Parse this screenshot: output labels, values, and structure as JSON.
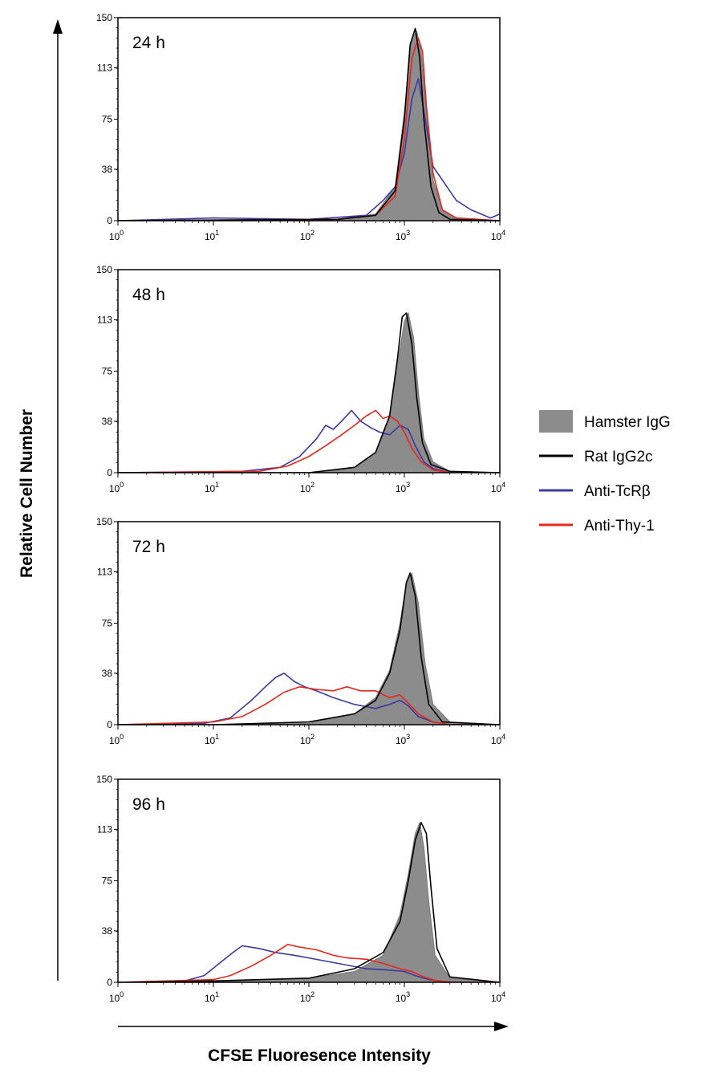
{
  "chart_data": {
    "type": "line",
    "xlabel": "CFSE Fluoresence Intensity",
    "ylabel": "Relative Cell Number",
    "x_scale": "log",
    "xlim": [
      1,
      10000
    ],
    "ylim": [
      0,
      150
    ],
    "x_ticks": [
      "10^0",
      "10^1",
      "10^2",
      "10^3",
      "10^4"
    ],
    "y_ticks": [
      "0",
      "38",
      "75",
      "113",
      "150"
    ],
    "legend": {
      "placement": "right",
      "entries": [
        {
          "name": "Hamster IgG",
          "color": "#8c8c8c",
          "style": "filled"
        },
        {
          "name": "Rat IgG2c",
          "color": "#000000",
          "style": "line"
        },
        {
          "name": "Anti-TcRβ",
          "color": "#3a3aa0",
          "style": "line"
        },
        {
          "name": "Anti-Thy-1",
          "color": "#e8261c",
          "style": "line"
        }
      ]
    },
    "panels": [
      {
        "label": "24 h",
        "series": [
          {
            "name": "Hamster IgG",
            "x": [
              1,
              200,
              500,
              800,
              1000,
              1200,
              1350,
              1500,
              1700,
              2000,
              2500,
              3500,
              10000
            ],
            "y": [
              0,
              1,
              5,
              25,
              80,
              135,
              140,
              125,
              80,
              30,
              8,
              2,
              0
            ]
          },
          {
            "name": "Rat IgG2c",
            "x": [
              1,
              200,
              500,
              800,
              1000,
              1150,
              1300,
              1450,
              1600,
              1900,
              2300,
              3000,
              10000
            ],
            "y": [
              0,
              1,
              4,
              22,
              75,
              130,
              142,
              120,
              75,
              25,
              6,
              1,
              0
            ]
          },
          {
            "name": "Anti-TcRβ",
            "x": [
              1,
              10,
              100,
              400,
              600,
              800,
              1000,
              1200,
              1400,
              1700,
              2000,
              2500,
              3500,
              5000,
              8000,
              10000
            ],
            "y": [
              0,
              2,
              1,
              4,
              15,
              25,
              50,
              90,
              105,
              70,
              40,
              30,
              15,
              8,
              2,
              5
            ]
          },
          {
            "name": "Anti-Thy-1",
            "x": [
              1,
              200,
              500,
              800,
              1000,
              1200,
              1400,
              1550,
              1700,
              2000,
              2500,
              3500,
              10000
            ],
            "y": [
              0,
              1,
              4,
              18,
              60,
              120,
              135,
              125,
              85,
              35,
              8,
              2,
              0
            ]
          }
        ]
      },
      {
        "label": "48 h",
        "series": [
          {
            "name": "Hamster IgG",
            "x": [
              1,
              100,
              300,
              500,
              700,
              850,
              1000,
              1100,
              1250,
              1400,
              1600,
              2000,
              3000,
              10000
            ],
            "y": [
              0,
              0,
              4,
              15,
              40,
              80,
              112,
              118,
              100,
              60,
              25,
              8,
              1,
              0
            ]
          },
          {
            "name": "Rat IgG2c",
            "x": [
              1,
              100,
              300,
              500,
              700,
              850,
              950,
              1050,
              1200,
              1350,
              1550,
              1900,
              3000,
              10000
            ],
            "y": [
              0,
              0,
              4,
              15,
              42,
              85,
              115,
              118,
              95,
              55,
              22,
              6,
              1,
              0
            ]
          },
          {
            "name": "Anti-TcRβ",
            "x": [
              1,
              20,
              50,
              80,
              120,
              150,
              180,
              220,
              280,
              350,
              450,
              550,
              700,
              900,
              1100,
              1300,
              1600,
              2000,
              3000,
              10000
            ],
            "y": [
              0,
              1,
              4,
              12,
              25,
              35,
              32,
              38,
              46,
              38,
              33,
              30,
              28,
              35,
              32,
              20,
              8,
              3,
              0,
              0
            ]
          },
          {
            "name": "Anti-Thy-1",
            "x": [
              1,
              30,
              60,
              100,
              150,
              220,
              300,
              400,
              500,
              600,
              700,
              850,
              1000,
              1200,
              1500,
              2000,
              3000,
              10000
            ],
            "y": [
              0,
              1,
              5,
              12,
              20,
              28,
              35,
              42,
              46,
              40,
              42,
              38,
              30,
              18,
              8,
              2,
              0,
              0
            ]
          }
        ]
      },
      {
        "label": "72 h",
        "series": [
          {
            "name": "Hamster IgG",
            "x": [
              1,
              10,
              100,
              300,
              500,
              700,
              900,
              1050,
              1200,
              1400,
              1650,
              2000,
              3000,
              10000
            ],
            "y": [
              0,
              0,
              1,
              8,
              20,
              40,
              75,
              105,
              112,
              90,
              45,
              15,
              2,
              0
            ]
          },
          {
            "name": "Rat IgG2c",
            "x": [
              1,
              10,
              100,
              300,
              500,
              700,
              900,
              1050,
              1150,
              1300,
              1500,
              1800,
              2500,
              10000
            ],
            "y": [
              0,
              0,
              2,
              8,
              18,
              38,
              70,
              105,
              112,
              95,
              50,
              15,
              2,
              0
            ]
          },
          {
            "name": "Anti-TcRβ",
            "x": [
              1,
              8,
              15,
              25,
              35,
              45,
              55,
              70,
              90,
              120,
              180,
              300,
              500,
              700,
              900,
              1100,
              1400,
              2000,
              3000,
              10000
            ],
            "y": [
              0,
              1,
              5,
              18,
              28,
              35,
              38,
              32,
              28,
              25,
              20,
              15,
              12,
              15,
              18,
              14,
              6,
              2,
              0,
              0
            ]
          },
          {
            "name": "Anti-Thy-1",
            "x": [
              1,
              10,
              20,
              35,
              55,
              80,
              120,
              180,
              250,
              350,
              500,
              700,
              900,
              1100,
              1400,
              2000,
              3000,
              10000
            ],
            "y": [
              0,
              2,
              6,
              15,
              24,
              28,
              26,
              25,
              28,
              25,
              25,
              20,
              22,
              16,
              8,
              2,
              0,
              0
            ]
          }
        ]
      },
      {
        "label": "96 h",
        "series": [
          {
            "name": "Hamster IgG",
            "x": [
              1,
              10,
              100,
              300,
              600,
              900,
              1100,
              1300,
              1450,
              1600,
              1800,
              2100,
              3000,
              10000
            ],
            "y": [
              0,
              1,
              3,
              8,
              20,
              50,
              80,
              110,
              118,
              100,
              60,
              20,
              3,
              0
            ]
          },
          {
            "name": "Rat IgG2c",
            "x": [
              1,
              10,
              100,
              300,
              600,
              900,
              1100,
              1300,
              1500,
              1700,
              1900,
              2200,
              3000,
              10000
            ],
            "y": [
              0,
              1,
              3,
              10,
              22,
              45,
              75,
              105,
              118,
              110,
              70,
              25,
              4,
              0
            ]
          },
          {
            "name": "Anti-TcRβ",
            "x": [
              1,
              5,
              8,
              12,
              16,
              20,
              30,
              45,
              70,
              100,
              200,
              400,
              700,
              1000,
              1300,
              1800,
              3000,
              10000
            ],
            "y": [
              0,
              1,
              5,
              15,
              22,
              27,
              25,
              22,
              20,
              18,
              14,
              10,
              9,
              8,
              5,
              2,
              0,
              0
            ]
          },
          {
            "name": "Anti-Thy-1",
            "x": [
              1,
              10,
              15,
              25,
              40,
              60,
              80,
              120,
              180,
              250,
              400,
              600,
              900,
              1200,
              1600,
              2200,
              3500,
              10000
            ],
            "y": [
              0,
              2,
              5,
              12,
              20,
              28,
              26,
              24,
              20,
              18,
              17,
              14,
              10,
              8,
              4,
              1,
              0,
              0
            ]
          }
        ]
      }
    ]
  }
}
